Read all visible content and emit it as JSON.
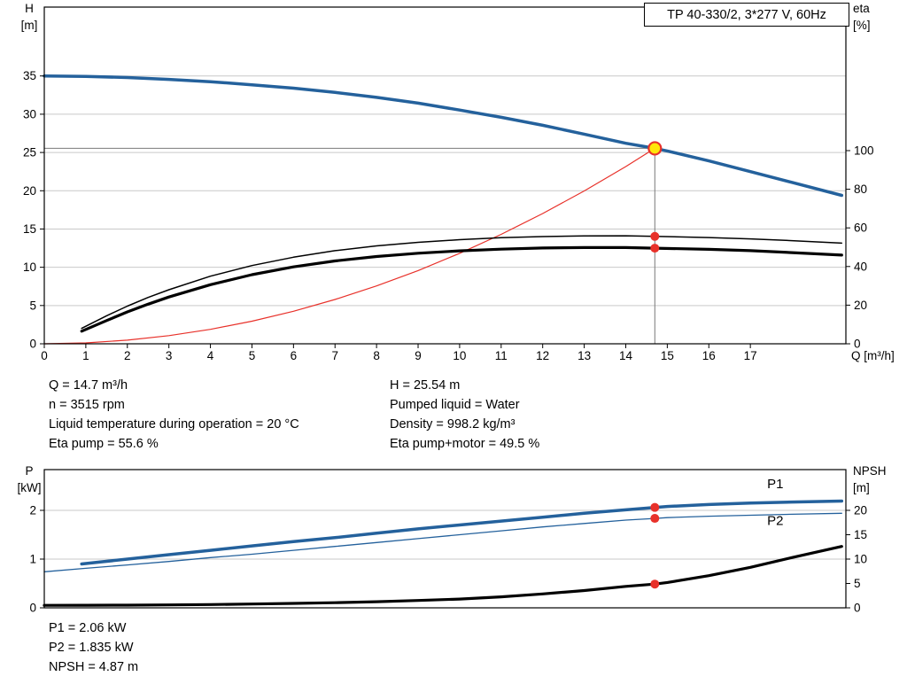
{
  "header": {
    "model_box": "TP 40-330/2, 3*277 V, 60Hz"
  },
  "duty_info": {
    "left": [
      "Q = 14.7 m³/h",
      "n = 3515 rpm",
      "Liquid temperature during operation = 20 °C",
      "Eta pump = 55.6 %"
    ],
    "right": [
      "H = 25.54 m",
      "Pumped liquid = Water",
      "Density = 998.2 kg/m³",
      "Eta pump+motor = 49.5 %"
    ]
  },
  "power_info": [
    "P1 = 2.06 kW",
    "P2 = 1.835 kW",
    "NPSH = 4.87 m"
  ],
  "colors": {
    "curve_blue": "#24619c",
    "curve_red": "#e8312a",
    "duty_yellow": "#ffe60a",
    "grid": "#c9c9c9",
    "crosshair": "#7a7a7a"
  },
  "chart_data": [
    {
      "id": "qh",
      "type": "line",
      "title": "Pump head, efficiency and system curve",
      "xlabel": "Q [m³/h]",
      "ylabel_left": [
        "H",
        "[m]"
      ],
      "ylabel_right": [
        "eta",
        "[%]"
      ],
      "xlim": [
        0,
        19.3
      ],
      "ylim_left": [
        0,
        44
      ],
      "ylim_right": [
        0,
        174.3
      ],
      "xticks": [
        0,
        1,
        2,
        3,
        4,
        5,
        6,
        7,
        8,
        9,
        10,
        11,
        12,
        13,
        14,
        15,
        16,
        17
      ],
      "yticks_left": [
        0,
        5,
        10,
        15,
        20,
        25,
        30,
        35
      ],
      "yticks_right": [
        0,
        20,
        40,
        60,
        80,
        100
      ],
      "grid": "horizontal",
      "crosshair": {
        "x": 14.7,
        "y": 25.54
      },
      "series": [
        {
          "name": "head-curve",
          "axis": "left",
          "color": "#24619c",
          "width": 3.5,
          "points": [
            [
              0,
              35.0
            ],
            [
              1,
              34.95
            ],
            [
              2,
              34.8
            ],
            [
              3,
              34.55
            ],
            [
              4,
              34.25
            ],
            [
              5,
              33.85
            ],
            [
              6,
              33.4
            ],
            [
              7,
              32.85
            ],
            [
              8,
              32.2
            ],
            [
              9,
              31.45
            ],
            [
              10,
              30.55
            ],
            [
              11,
              29.6
            ],
            [
              12,
              28.55
            ],
            [
              13,
              27.4
            ],
            [
              14,
              26.2
            ],
            [
              14.7,
              25.54
            ],
            [
              15,
              25.2
            ],
            [
              16,
              23.9
            ],
            [
              17,
              22.5
            ],
            [
              18,
              21.1
            ],
            [
              19.2,
              19.4
            ]
          ]
        },
        {
          "name": "system-curve",
          "axis": "left",
          "color": "#e8312a",
          "width": 1.2,
          "points": [
            [
              0,
              0
            ],
            [
              1,
              0.12
            ],
            [
              2,
              0.47
            ],
            [
              3,
              1.06
            ],
            [
              4,
              1.89
            ],
            [
              5,
              2.95
            ],
            [
              6,
              4.25
            ],
            [
              7,
              5.79
            ],
            [
              8,
              7.56
            ],
            [
              9,
              9.57
            ],
            [
              10,
              11.82
            ],
            [
              11,
              14.3
            ],
            [
              12,
              17.02
            ],
            [
              13,
              19.97
            ],
            [
              14,
              23.16
            ],
            [
              14.7,
              25.54
            ]
          ]
        },
        {
          "name": "eta-pump-curve",
          "axis": "right",
          "color": "#000000",
          "width": 1.5,
          "points": [
            [
              0.9,
              8
            ],
            [
              1.5,
              14.5
            ],
            [
              2,
              19.5
            ],
            [
              2.5,
              24
            ],
            [
              3,
              28
            ],
            [
              4,
              35
            ],
            [
              5,
              40.5
            ],
            [
              6,
              44.8
            ],
            [
              7,
              48.2
            ],
            [
              8,
              50.7
            ],
            [
              9,
              52.5
            ],
            [
              10,
              53.9
            ],
            [
              11,
              54.9
            ],
            [
              12,
              55.5
            ],
            [
              13,
              55.8
            ],
            [
              14,
              55.9
            ],
            [
              14.7,
              55.6
            ],
            [
              16,
              55.0
            ],
            [
              17,
              54.3
            ],
            [
              18,
              53.4
            ],
            [
              19.2,
              52.1
            ]
          ]
        },
        {
          "name": "eta-pump-motor-curve",
          "axis": "right",
          "color": "#000000",
          "width": 3.2,
          "points": [
            [
              0.9,
              6.5
            ],
            [
              1.5,
              12
            ],
            [
              2,
              16.5
            ],
            [
              2.5,
              20.5
            ],
            [
              3,
              24.2
            ],
            [
              4,
              30.6
            ],
            [
              5,
              35.8
            ],
            [
              6,
              39.8
            ],
            [
              7,
              42.9
            ],
            [
              8,
              45.2
            ],
            [
              9,
              46.9
            ],
            [
              10,
              48.1
            ],
            [
              11,
              49.0
            ],
            [
              12,
              49.6
            ],
            [
              13,
              49.8
            ],
            [
              14,
              49.8
            ],
            [
              14.7,
              49.5
            ],
            [
              16,
              48.9
            ],
            [
              17,
              48.2
            ],
            [
              18,
              47.2
            ],
            [
              19.2,
              45.9
            ]
          ]
        }
      ],
      "markers": [
        {
          "name": "duty-point",
          "axis": "left",
          "x": 14.7,
          "y": 25.54,
          "r": 7,
          "fill": "#ffe60a",
          "stroke": "#e8312a",
          "stroke_width": 2.2
        },
        {
          "name": "eta-pump-dot",
          "axis": "right",
          "x": 14.7,
          "y": 55.6,
          "r": 5,
          "fill": "#e8312a"
        },
        {
          "name": "eta-pump-motor-dot",
          "axis": "right",
          "x": 14.7,
          "y": 49.5,
          "r": 5,
          "fill": "#e8312a"
        }
      ],
      "annotations": []
    },
    {
      "id": "power-npsh",
      "type": "line",
      "title": "Power consumption and NPSH",
      "xlabel": "",
      "ylabel_left": [
        "P",
        "[kW]"
      ],
      "ylabel_right": [
        "NPSH",
        "[m]"
      ],
      "xlim": [
        0,
        19.3
      ],
      "ylim_left": [
        0,
        2.836
      ],
      "ylim_right": [
        0,
        28.36
      ],
      "xticks": [],
      "yticks_left": [
        0,
        1,
        2
      ],
      "yticks_right": [
        0,
        5,
        10,
        15,
        20
      ],
      "grid": "horizontal",
      "series": [
        {
          "name": "p1-curve",
          "axis": "left",
          "color": "#24619c",
          "width": 3.5,
          "points": [
            [
              0.9,
              0.9
            ],
            [
              2,
              1.0
            ],
            [
              3,
              1.09
            ],
            [
              4,
              1.18
            ],
            [
              5,
              1.27
            ],
            [
              6,
              1.36
            ],
            [
              7,
              1.44
            ],
            [
              8,
              1.53
            ],
            [
              9,
              1.62
            ],
            [
              10,
              1.7
            ],
            [
              11,
              1.78
            ],
            [
              12,
              1.86
            ],
            [
              13,
              1.94
            ],
            [
              14,
              2.01
            ],
            [
              14.7,
              2.06
            ],
            [
              15,
              2.08
            ],
            [
              16,
              2.12
            ],
            [
              17,
              2.15
            ],
            [
              18,
              2.17
            ],
            [
              19.2,
              2.19
            ]
          ]
        },
        {
          "name": "p2-curve",
          "axis": "left",
          "color": "#24619c",
          "width": 1.3,
          "points": [
            [
              0,
              0.74
            ],
            [
              1,
              0.81
            ],
            [
              2,
              0.88
            ],
            [
              3,
              0.95
            ],
            [
              4,
              1.03
            ],
            [
              5,
              1.1
            ],
            [
              6,
              1.18
            ],
            [
              7,
              1.26
            ],
            [
              8,
              1.34
            ],
            [
              9,
              1.42
            ],
            [
              10,
              1.5
            ],
            [
              11,
              1.58
            ],
            [
              12,
              1.66
            ],
            [
              13,
              1.73
            ],
            [
              14,
              1.8
            ],
            [
              14.7,
              1.835
            ],
            [
              15,
              1.85
            ],
            [
              16,
              1.88
            ],
            [
              17,
              1.9
            ],
            [
              18,
              1.92
            ],
            [
              19.2,
              1.94
            ]
          ]
        },
        {
          "name": "npsh-curve",
          "axis": "right",
          "color": "#000000",
          "width": 3.2,
          "points": [
            [
              0,
              0.5
            ],
            [
              1,
              0.52
            ],
            [
              2,
              0.55
            ],
            [
              3,
              0.6
            ],
            [
              4,
              0.68
            ],
            [
              5,
              0.78
            ],
            [
              6,
              0.9
            ],
            [
              7,
              1.05
            ],
            [
              8,
              1.25
            ],
            [
              9,
              1.5
            ],
            [
              10,
              1.8
            ],
            [
              11,
              2.25
            ],
            [
              12,
              2.85
            ],
            [
              13,
              3.55
            ],
            [
              14,
              4.4
            ],
            [
              14.7,
              4.87
            ],
            [
              15,
              5.2
            ],
            [
              16,
              6.6
            ],
            [
              17,
              8.3
            ],
            [
              18,
              10.3
            ],
            [
              19.2,
              12.6
            ]
          ]
        }
      ],
      "markers": [
        {
          "name": "p1-dot",
          "axis": "left",
          "x": 14.7,
          "y": 2.06,
          "r": 5,
          "fill": "#e8312a"
        },
        {
          "name": "p2-dot",
          "axis": "left",
          "x": 14.7,
          "y": 1.835,
          "r": 5,
          "fill": "#e8312a"
        },
        {
          "name": "npsh-dot",
          "axis": "right",
          "x": 14.7,
          "y": 4.87,
          "r": 5,
          "fill": "#e8312a"
        }
      ],
      "annotations": [
        {
          "name": "p1-label",
          "text": "P1",
          "axis": "left",
          "x": 17.6,
          "y": 2.45,
          "color": "#24619c"
        },
        {
          "name": "p2-label",
          "text": "P2",
          "axis": "left",
          "x": 17.6,
          "y": 1.7,
          "color": "#24619c"
        }
      ]
    }
  ]
}
